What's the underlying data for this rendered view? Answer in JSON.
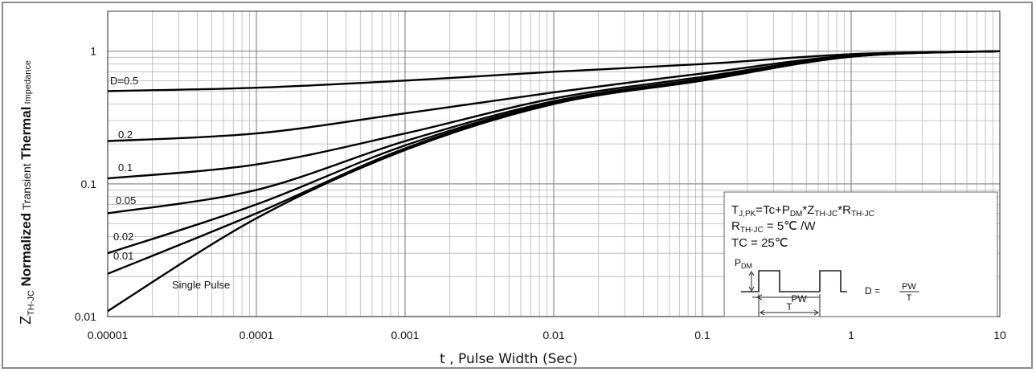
{
  "chart_data": {
    "type": "line",
    "x_scale": "log",
    "y_scale": "log",
    "xlim": [
      1e-05,
      10
    ],
    "ylim": [
      0.01,
      2
    ],
    "grid": true,
    "x_ticks": [
      {
        "value": 1e-05,
        "label": "0.00001"
      },
      {
        "value": 0.0001,
        "label": "0.0001"
      },
      {
        "value": 0.001,
        "label": "0.001"
      },
      {
        "value": 0.01,
        "label": "0.01"
      },
      {
        "value": 0.1,
        "label": "0.1"
      },
      {
        "value": 1,
        "label": "1"
      },
      {
        "value": 10,
        "label": "10"
      }
    ],
    "y_ticks": [
      {
        "value": 1,
        "label": "1"
      },
      {
        "value": 0.1,
        "label": "0.1"
      },
      {
        "value": 0.01,
        "label": "0.01"
      }
    ],
    "xlabel": "t , Pulse Width (Sec)",
    "ylabel": {
      "z": "Z",
      "z_sub": "TH-JC",
      "normalized": " Normalized",
      "transient": " Transient",
      "thermal": " Thermal",
      "impedance": " Impedance"
    },
    "x": [
      1e-05,
      0.0001,
      0.001,
      0.01,
      0.1,
      1,
      10
    ],
    "series": [
      {
        "name": "D=0.5",
        "values": [
          0.5,
          0.53,
          0.6,
          0.7,
          0.8,
          0.95,
          1.0
        ]
      },
      {
        "name": "0.2",
        "values": [
          0.21,
          0.24,
          0.34,
          0.49,
          0.68,
          0.93,
          1.0
        ]
      },
      {
        "name": "0.1",
        "values": [
          0.11,
          0.14,
          0.24,
          0.44,
          0.64,
          0.92,
          1.0
        ]
      },
      {
        "name": "0.05",
        "values": [
          0.06,
          0.09,
          0.21,
          0.42,
          0.62,
          0.92,
          1.0
        ]
      },
      {
        "name": "0.02",
        "values": [
          0.03,
          0.07,
          0.195,
          0.41,
          0.61,
          0.91,
          1.0
        ]
      },
      {
        "name": "0.01",
        "values": [
          0.021,
          0.06,
          0.185,
          0.405,
          0.605,
          0.91,
          1.0
        ]
      },
      {
        "name": "Single Pulse",
        "values": [
          0.011,
          0.055,
          0.18,
          0.4,
          0.6,
          0.91,
          1.0
        ]
      }
    ],
    "annotations": {
      "formula": {
        "t": "T",
        "t_sub": "J,PK",
        "a": "=Tc+P",
        "a_sub": "DM",
        "b": "*Z",
        "b_sub": "TH-JC",
        "c": "*R",
        "c_sub": "TH-JC"
      },
      "rth": {
        "r": "R",
        "r_sub": "TH-JC",
        "rest": " = 5℃ /W"
      },
      "tc": "TC = 25℃",
      "pdm": {
        "p": "P",
        "p_sub": "DM"
      },
      "pw": "PW",
      "t_period": "T",
      "duty": {
        "d": "D =",
        "num": "PW",
        "den": "T"
      }
    }
  }
}
